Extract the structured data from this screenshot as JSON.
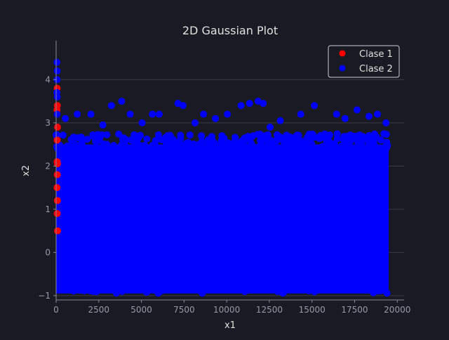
{
  "chart_data": {
    "type": "scatter",
    "title": "2D Gaussian Plot",
    "xlabel": "x1",
    "ylabel": "x2",
    "xlim": [
      0,
      20400
    ],
    "ylim": [
      -1.1,
      4.9
    ],
    "xticks": [
      0,
      2500,
      5000,
      7500,
      10000,
      12500,
      15000,
      17500,
      20000
    ],
    "yticks": [
      -1,
      0,
      1,
      2,
      3,
      4
    ],
    "grid": "y-only",
    "legend": "top-right",
    "series": [
      {
        "name": "Clase 1",
        "color": "#ff0000",
        "points": [
          [
            20,
            3.8
          ],
          [
            30,
            3.4
          ],
          [
            10,
            3.3
          ],
          [
            40,
            2.9
          ],
          [
            20,
            2.6
          ],
          [
            15,
            2.1
          ],
          [
            35,
            2.05
          ],
          [
            25,
            1.8
          ],
          [
            10,
            1.5
          ],
          [
            30,
            1.2
          ],
          [
            20,
            0.9
          ],
          [
            40,
            0.5
          ]
        ]
      },
      {
        "name": "Clase 2",
        "color": "#0000ff",
        "x_range": [
          0,
          19500
        ],
        "dense_band": [
          -0.95,
          2.5
        ],
        "points": [
          [
            10,
            4.4
          ],
          [
            20,
            4.2
          ],
          [
            15,
            4.0
          ],
          [
            5,
            3.7
          ],
          [
            25,
            3.6
          ],
          [
            20,
            3.2
          ],
          [
            3200,
            3.4
          ],
          [
            3800,
            3.5
          ],
          [
            4300,
            3.2
          ],
          [
            5000,
            3.0
          ],
          [
            6000,
            3.2
          ],
          [
            7100,
            3.45
          ],
          [
            7400,
            3.4
          ],
          [
            8600,
            3.2
          ],
          [
            10000,
            3.2
          ],
          [
            10800,
            3.4
          ],
          [
            11300,
            3.45
          ],
          [
            11800,
            3.5
          ],
          [
            12100,
            3.45
          ],
          [
            12500,
            2.9
          ],
          [
            14300,
            3.2
          ],
          [
            15100,
            3.4
          ],
          [
            16400,
            3.2
          ],
          [
            17600,
            3.3
          ],
          [
            18300,
            3.15
          ],
          [
            18800,
            3.2
          ],
          [
            500,
            3.1
          ],
          [
            1200,
            3.2
          ],
          [
            2000,
            3.2
          ],
          [
            2700,
            2.95
          ],
          [
            5600,
            3.2
          ],
          [
            8100,
            3.0
          ],
          [
            9300,
            3.1
          ],
          [
            13100,
            3.05
          ],
          [
            16900,
            3.1
          ],
          [
            19300,
            3.0
          ],
          [
            900,
            2.6
          ],
          [
            2200,
            2.7
          ],
          [
            4700,
            2.6
          ],
          [
            6500,
            2.7
          ],
          [
            9700,
            2.65
          ],
          [
            11500,
            2.7
          ],
          [
            14800,
            2.6
          ],
          [
            17100,
            2.7
          ],
          [
            19000,
            2.6
          ]
        ]
      }
    ]
  }
}
